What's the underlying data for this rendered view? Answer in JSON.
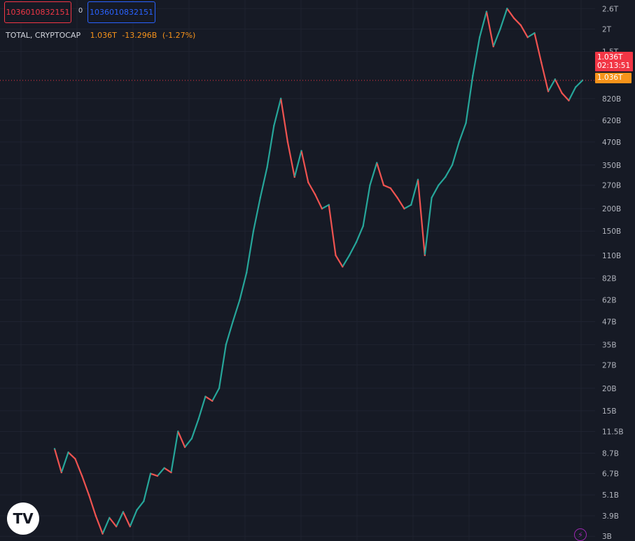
{
  "toolbar": {
    "sell_price": "1036010832151",
    "spread": "0",
    "buy_price": "1036010832151"
  },
  "legend": {
    "symbol": "TOTAL, CRYPTOCAP",
    "last": "1.036T",
    "change": "-13.296B",
    "change_pct": "(-1.27%)"
  },
  "price_scale": {
    "tag_price": "1.036T",
    "tag_countdown": "02:13:51",
    "line_tag": "1.036T"
  },
  "logo": {
    "text": "TV"
  },
  "colors": {
    "background": "#161a25",
    "up": "#26a69a",
    "down": "#ef5350",
    "accent": "#f7931a",
    "sell": "#f23645",
    "buy": "#2962ff"
  },
  "chart_data": {
    "type": "line",
    "title": "",
    "xlabel": "",
    "ylabel": "",
    "y_scale": "log",
    "grid": true,
    "ylim": [
      2900000000,
      2800000000000
    ],
    "y_ticks": [
      {
        "label": "2.6T",
        "value": 2600000000000
      },
      {
        "label": "2T",
        "value": 2000000000000
      },
      {
        "label": "1.5T",
        "value": 1500000000000
      },
      {
        "label": "820B",
        "value": 820000000000
      },
      {
        "label": "620B",
        "value": 620000000000
      },
      {
        "label": "470B",
        "value": 470000000000
      },
      {
        "label": "350B",
        "value": 350000000000
      },
      {
        "label": "270B",
        "value": 270000000000
      },
      {
        "label": "200B",
        "value": 200000000000
      },
      {
        "label": "150B",
        "value": 150000000000
      },
      {
        "label": "110B",
        "value": 110000000000
      },
      {
        "label": "82B",
        "value": 82000000000
      },
      {
        "label": "62B",
        "value": 62000000000
      },
      {
        "label": "47B",
        "value": 47000000000
      },
      {
        "label": "35B",
        "value": 35000000000
      },
      {
        "label": "27B",
        "value": 27000000000
      },
      {
        "label": "20B",
        "value": 20000000000
      },
      {
        "label": "15B",
        "value": 15000000000
      },
      {
        "label": "11.5B",
        "value": 11500000000
      },
      {
        "label": "8.7B",
        "value": 8700000000
      },
      {
        "label": "6.7B",
        "value": 6700000000
      },
      {
        "label": "5.1B",
        "value": 5100000000
      },
      {
        "label": "3.9B",
        "value": 3900000000
      },
      {
        "label": "3B",
        "value": 3000000000
      }
    ],
    "last_price": 1036000000000,
    "series": [
      {
        "values": [
          9200000000,
          6800000000,
          8800000000,
          8100000000,
          6500000000,
          5100000000,
          3900000000,
          3100000000,
          3800000000,
          3400000000,
          4100000000,
          3400000000,
          4200000000,
          4700000000,
          6700000000,
          6500000000,
          7200000000,
          6800000000,
          11500000000,
          9400000000,
          10500000000,
          13500000000,
          18000000000,
          17000000000,
          20000000000,
          35000000000,
          47000000000,
          62000000000,
          88000000000,
          150000000000,
          230000000000,
          340000000000,
          580000000000,
          820000000000,
          470000000000,
          300000000000,
          420000000000,
          280000000000,
          240000000000,
          200000000000,
          210000000000,
          110000000000,
          95000000000,
          110000000000,
          130000000000,
          160000000000,
          270000000000,
          360000000000,
          270000000000,
          260000000000,
          230000000000,
          200000000000,
          210000000000,
          290000000000,
          110000000000,
          230000000000,
          270000000000,
          300000000000,
          350000000000,
          470000000000,
          600000000000,
          1100000000000,
          1800000000000,
          2500000000000,
          1600000000000,
          2000000000000,
          2600000000000,
          2300000000000,
          2100000000000,
          1800000000000,
          1900000000000,
          1300000000000,
          900000000000,
          1050000000000,
          880000000000,
          800000000000,
          950000000000,
          1036000000000
        ]
      }
    ]
  }
}
